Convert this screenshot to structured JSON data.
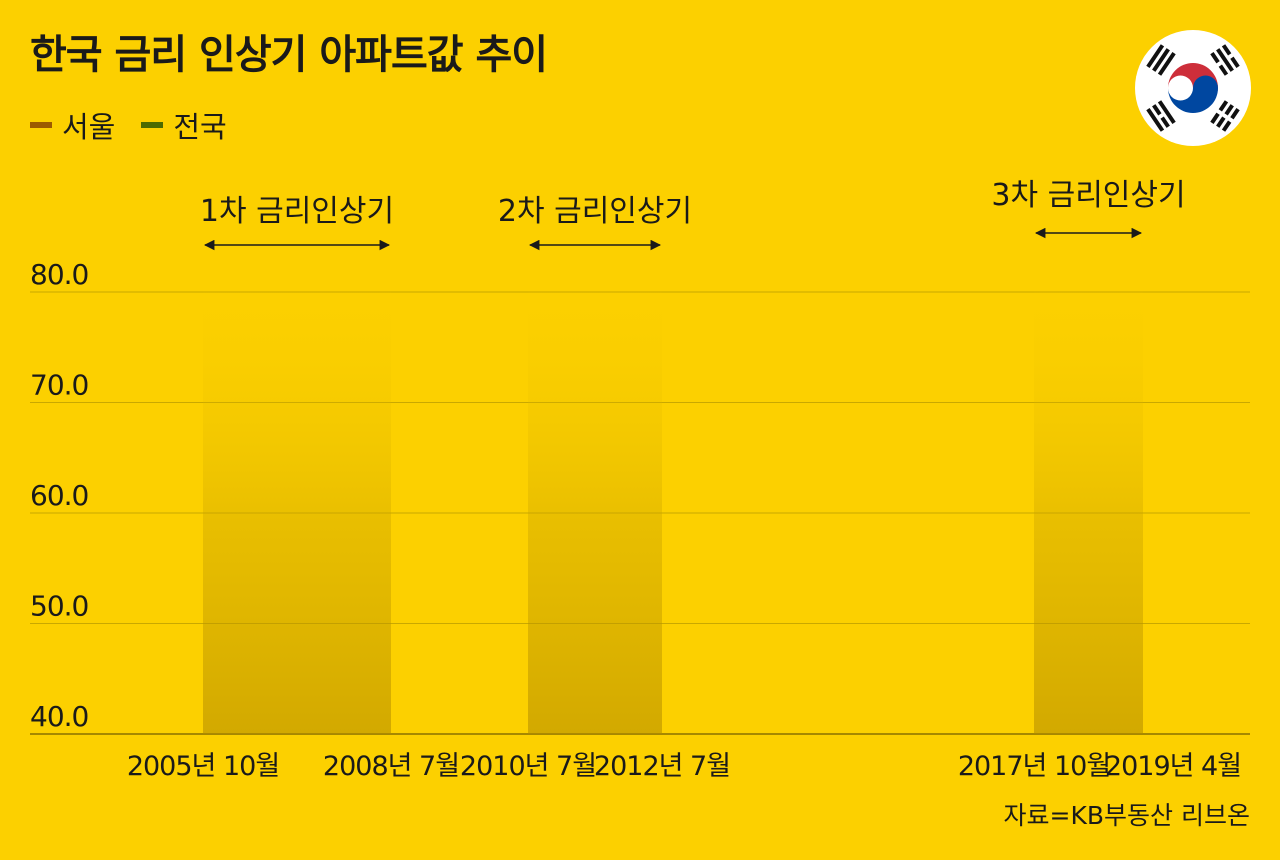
{
  "header": {
    "title": "한국 금리 인상기 아파트값 추이"
  },
  "legend": [
    {
      "label": "서울",
      "color": "#9C5A00"
    },
    {
      "label": "전국",
      "color": "#4C6A00"
    }
  ],
  "source": "자료=KB부동산 리브온",
  "flag_icon": "korea-flag-icon",
  "colors": {
    "background": "#FCD000",
    "band": "#B08900",
    "grid": "#C9A800",
    "text": "#1a1a1a"
  },
  "chart_data": {
    "type": "line",
    "title": "한국 금리 인상기 아파트값 추이",
    "xlabel": "",
    "ylabel": "",
    "ylim": [
      40,
      80
    ],
    "yticks": [
      40,
      50,
      60,
      70,
      80
    ],
    "ytick_labels": [
      "40.0",
      "50.0",
      "60.0",
      "70.0",
      "80.0"
    ],
    "grid": true,
    "legend_position": "top-left",
    "x_tick_labels": [
      "2005년 10월",
      "2008년 7월",
      "2010년 7월",
      "2012년 7월",
      "2017년 10월",
      "2019년 4월"
    ],
    "series": [
      {
        "name": "서울",
        "values": []
      },
      {
        "name": "전국",
        "values": []
      }
    ],
    "periods": [
      {
        "label": "1차 금리인상기",
        "start": "2005-10",
        "end": "2008-07"
      },
      {
        "label": "2차 금리인상기",
        "start": "2010-07",
        "end": "2012-07"
      },
      {
        "label": "3차 금리인상기",
        "start": "2017-10",
        "end": "2019-04"
      }
    ]
  }
}
